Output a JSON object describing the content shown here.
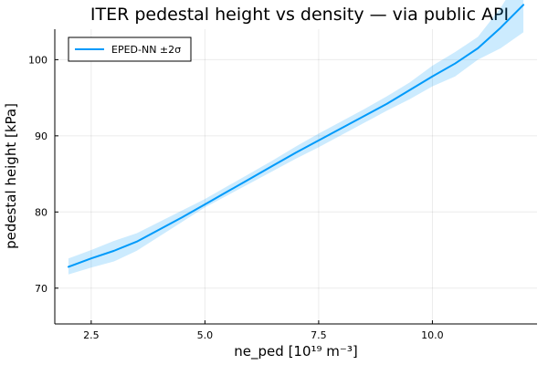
{
  "chart_data": {
    "type": "line",
    "title": "ITER pedestal height vs density — via public API",
    "xlabel": "ne_ped [10¹⁹ m⁻³]",
    "ylabel": "pedestal height [kPa]",
    "xlim": [
      1.7,
      12.3
    ],
    "ylim": [
      65.3,
      104.0
    ],
    "xticks": [
      2.5,
      5.0,
      7.5,
      10.0
    ],
    "xtick_labels": [
      "2.5",
      "5.0",
      "7.5",
      "10.0"
    ],
    "yticks": [
      70,
      80,
      90,
      100
    ],
    "ytick_labels": [
      "70",
      "80",
      "90",
      "100"
    ],
    "grid": true,
    "legend_position": "top-left",
    "series": [
      {
        "name": "EPED-NN ±2σ",
        "color": "#009AFA",
        "band_color": "#009AFA",
        "x": [
          2.0,
          2.5,
          3.0,
          3.5,
          4.0,
          4.5,
          5.0,
          5.5,
          6.0,
          6.5,
          7.0,
          7.5,
          8.0,
          8.5,
          9.0,
          9.5,
          10.0,
          10.5,
          11.0,
          11.5,
          12.0
        ],
        "y": [
          72.8,
          73.9,
          74.9,
          76.1,
          77.7,
          79.3,
          81.0,
          82.7,
          84.4,
          86.1,
          87.8,
          89.4,
          91.0,
          92.6,
          94.2,
          96.0,
          97.8,
          99.5,
          101.5,
          104.2,
          107.2
        ],
        "lower": [
          71.8,
          72.7,
          73.5,
          74.9,
          76.8,
          78.7,
          80.6,
          82.2,
          83.8,
          85.4,
          87.0,
          88.5,
          90.1,
          91.7,
          93.3,
          94.8,
          96.5,
          97.8,
          100.0,
          101.5,
          103.6
        ],
        "upper": [
          73.9,
          75.0,
          76.2,
          77.2,
          78.7,
          80.2,
          81.7,
          83.4,
          85.1,
          86.8,
          88.6,
          90.3,
          91.9,
          93.5,
          95.2,
          97.0,
          99.2,
          101.0,
          103.0,
          106.8,
          111.6
        ]
      }
    ]
  }
}
